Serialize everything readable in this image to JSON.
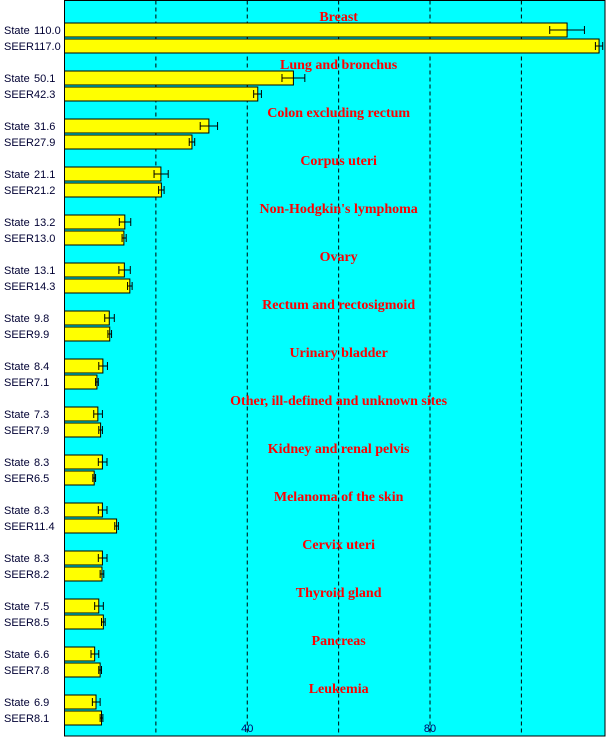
{
  "chart_data": {
    "type": "bar",
    "orientation": "horizontal",
    "xlim": [
      0,
      118.3
    ],
    "xticks": [
      40,
      80
    ],
    "gridlines": [
      20,
      40,
      60,
      80,
      100
    ],
    "grid": true,
    "colors": {
      "background": "#00ffff",
      "bar": "#ffff00",
      "category_label": "#ff0000"
    },
    "series_labels": [
      "State",
      "SEER"
    ],
    "categories": [
      {
        "name": "Breast",
        "state": 110.0,
        "state_ci": [
          106.2,
          113.8
        ],
        "seer": 117.0,
        "seer_ci": [
          116.2,
          117.8
        ]
      },
      {
        "name": "Lung and bronchus",
        "state": 50.1,
        "state_ci": [
          47.6,
          52.6
        ],
        "seer": 42.3,
        "seer_ci": [
          41.4,
          43.1
        ]
      },
      {
        "name": "Colon excluding rectum",
        "state": 31.6,
        "state_ci": [
          29.7,
          33.5
        ],
        "seer": 27.9,
        "seer_ci": [
          27.3,
          28.5
        ]
      },
      {
        "name": "Corpus uteri",
        "state": 21.1,
        "state_ci": [
          19.6,
          22.7
        ],
        "seer": 21.2,
        "seer_ci": [
          20.6,
          21.8
        ]
      },
      {
        "name": "Non-Hodgkin's lymphoma",
        "state": 13.2,
        "state_ci": [
          12.0,
          14.5
        ],
        "seer": 13.0,
        "seer_ci": [
          12.6,
          13.5
        ]
      },
      {
        "name": "Ovary",
        "state": 13.1,
        "state_ci": [
          11.9,
          14.4
        ],
        "seer": 14.3,
        "seer_ci": [
          13.8,
          14.8
        ]
      },
      {
        "name": "Rectum and rectosigmoid",
        "state": 9.8,
        "state_ci": [
          8.8,
          10.9
        ],
        "seer": 9.9,
        "seer_ci": [
          9.5,
          10.3
        ]
      },
      {
        "name": "Urinary bladder",
        "state": 8.4,
        "state_ci": [
          7.5,
          9.4
        ],
        "seer": 7.1,
        "seer_ci": [
          6.8,
          7.4
        ]
      },
      {
        "name": "Other, ill-defined and unknown sites",
        "state": 7.3,
        "state_ci": [
          6.4,
          8.3
        ],
        "seer": 7.9,
        "seer_ci": [
          7.5,
          8.3
        ]
      },
      {
        "name": "Kidney and renal pelvis",
        "state": 8.3,
        "state_ci": [
          7.4,
          9.3
        ],
        "seer": 6.5,
        "seer_ci": [
          6.2,
          6.8
        ]
      },
      {
        "name": "Melanoma of the skin",
        "state": 8.3,
        "state_ci": [
          7.4,
          9.3
        ],
        "seer": 11.4,
        "seer_ci": [
          11.0,
          11.8
        ]
      },
      {
        "name": "Cervix uteri",
        "state": 8.3,
        "state_ci": [
          7.4,
          9.3
        ],
        "seer": 8.2,
        "seer_ci": [
          7.8,
          8.6
        ]
      },
      {
        "name": "Thyroid gland",
        "state": 7.5,
        "state_ci": [
          6.6,
          8.5
        ],
        "seer": 8.5,
        "seer_ci": [
          8.1,
          8.9
        ]
      },
      {
        "name": "Pancreas",
        "state": 6.6,
        "state_ci": [
          5.8,
          7.5
        ],
        "seer": 7.8,
        "seer_ci": [
          7.5,
          8.1
        ]
      },
      {
        "name": "Leukemia",
        "state": 6.9,
        "state_ci": [
          6.1,
          7.8
        ],
        "seer": 8.1,
        "seer_ci": [
          7.8,
          8.4
        ]
      }
    ]
  }
}
